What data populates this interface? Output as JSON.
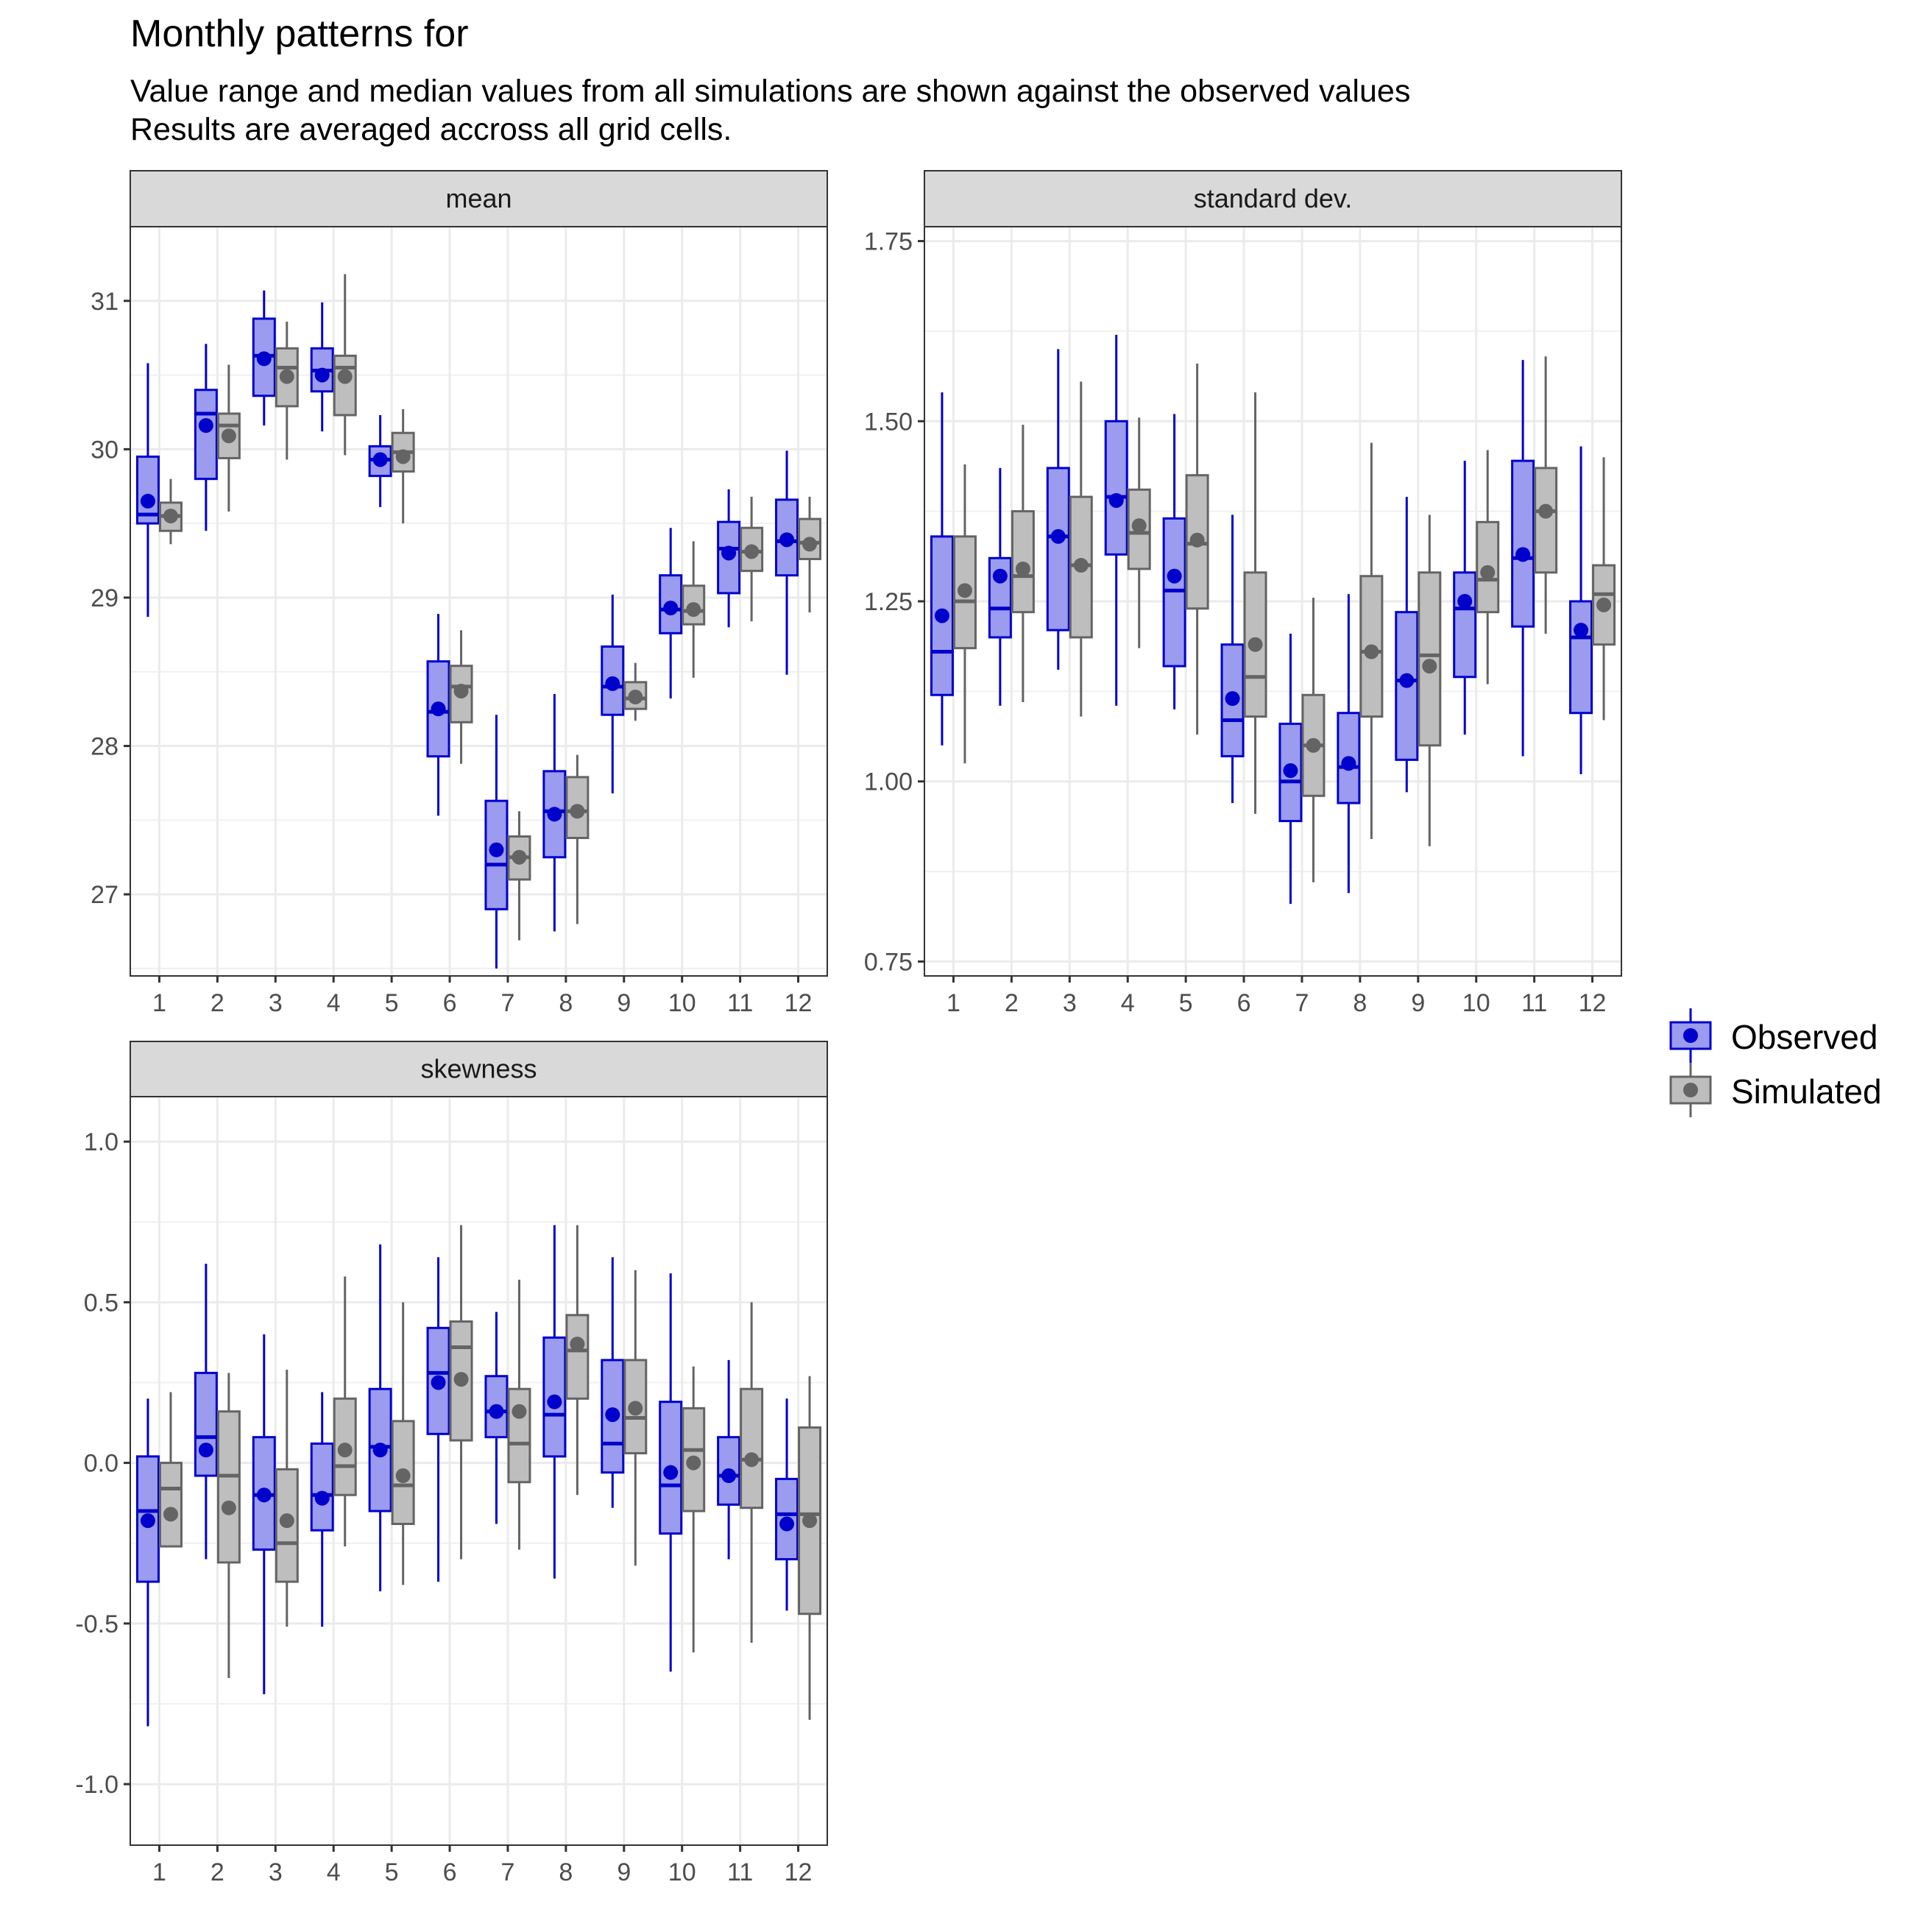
{
  "title": "Monthly patterns for",
  "subtitle_lines": [
    "Value range and median values from all simulations are shown against the observed values",
    "Results are averaged accross all grid cells."
  ],
  "legend": [
    {
      "key": "observed",
      "label": "Observed",
      "color": "#0000CD",
      "fill": "#9B9BEF"
    },
    {
      "key": "simulated",
      "label": "Simulated",
      "color": "#646464",
      "fill": "#BEBEBE"
    }
  ],
  "chart_data": [
    {
      "type": "boxplot",
      "panel": "mean",
      "categories": [
        "1",
        "2",
        "3",
        "4",
        "5",
        "6",
        "7",
        "8",
        "9",
        "10",
        "11",
        "12"
      ],
      "ylim": [
        26.45,
        31.5
      ],
      "yticks": [
        27,
        28,
        29,
        30,
        31
      ],
      "ytick_labels": [
        "27",
        "28",
        "29",
        "30",
        "31"
      ],
      "grid": true,
      "series": [
        {
          "name": "Observed",
          "min": [
            28.87,
            29.45,
            30.16,
            30.12,
            29.61,
            27.53,
            26.5,
            26.75,
            27.68,
            28.32,
            28.8,
            28.48
          ],
          "q1": [
            29.5,
            29.8,
            30.36,
            30.39,
            29.82,
            27.93,
            26.9,
            27.25,
            28.21,
            28.76,
            29.03,
            29.15
          ],
          "median": [
            29.56,
            30.24,
            30.63,
            30.53,
            29.93,
            28.23,
            27.2,
            27.56,
            28.4,
            28.92,
            29.33,
            29.38
          ],
          "q3": [
            29.95,
            30.4,
            30.88,
            30.68,
            30.02,
            28.57,
            27.63,
            27.83,
            28.67,
            29.15,
            29.51,
            29.66
          ],
          "max": [
            30.58,
            30.71,
            31.07,
            30.99,
            30.23,
            28.89,
            28.21,
            28.35,
            29.02,
            29.47,
            29.73,
            29.99
          ],
          "mean": [
            29.65,
            30.16,
            30.61,
            30.5,
            29.93,
            28.25,
            27.3,
            27.54,
            28.42,
            28.93,
            29.3,
            29.39
          ]
        },
        {
          "name": "Simulated",
          "min": [
            29.36,
            29.58,
            29.93,
            29.96,
            29.5,
            27.88,
            26.69,
            26.8,
            28.17,
            28.46,
            28.84,
            28.9
          ],
          "q1": [
            29.45,
            29.94,
            30.29,
            30.23,
            29.85,
            28.16,
            27.1,
            27.38,
            28.25,
            28.82,
            29.18,
            29.26
          ],
          "median": [
            29.55,
            30.16,
            30.55,
            30.55,
            29.98,
            28.4,
            27.25,
            27.56,
            28.32,
            28.91,
            29.31,
            29.37
          ],
          "q3": [
            29.64,
            30.24,
            30.68,
            30.63,
            30.11,
            28.54,
            27.39,
            27.79,
            28.43,
            29.08,
            29.47,
            29.53
          ],
          "max": [
            29.8,
            30.57,
            30.86,
            31.18,
            30.27,
            28.78,
            27.56,
            27.94,
            28.56,
            29.38,
            29.68,
            29.68
          ],
          "mean": [
            29.55,
            30.09,
            30.49,
            30.49,
            29.95,
            28.37,
            27.25,
            27.56,
            28.33,
            28.92,
            29.31,
            29.36
          ]
        }
      ]
    },
    {
      "type": "boxplot",
      "panel": "standard dev.",
      "categories": [
        "1",
        "2",
        "3",
        "4",
        "5",
        "6",
        "7",
        "8",
        "9",
        "10",
        "11",
        "12"
      ],
      "ylim": [
        0.73,
        1.77
      ],
      "yticks": [
        0.75,
        1.0,
        1.25,
        1.5,
        1.75
      ],
      "ytick_labels": [
        "0.75",
        "1.00",
        "1.25",
        "1.50",
        "1.75"
      ],
      "grid": true,
      "series": [
        {
          "name": "Observed",
          "min": [
            1.05,
            1.105,
            1.155,
            1.105,
            1.1,
            0.97,
            0.83,
            0.845,
            0.985,
            1.065,
            1.035,
            1.01
          ],
          "q1": [
            1.12,
            1.2,
            1.21,
            1.315,
            1.16,
            1.035,
            0.945,
            0.97,
            1.03,
            1.145,
            1.215,
            1.095
          ],
          "median": [
            1.18,
            1.24,
            1.34,
            1.395,
            1.265,
            1.085,
            1.0,
            1.02,
            1.14,
            1.24,
            1.31,
            1.2
          ],
          "q3": [
            1.34,
            1.31,
            1.435,
            1.5,
            1.365,
            1.19,
            1.08,
            1.095,
            1.235,
            1.29,
            1.445,
            1.25
          ],
          "max": [
            1.54,
            1.435,
            1.6,
            1.62,
            1.51,
            1.37,
            1.205,
            1.26,
            1.395,
            1.445,
            1.585,
            1.465
          ],
          "mean": [
            1.23,
            1.285,
            1.34,
            1.39,
            1.285,
            1.115,
            1.015,
            1.025,
            1.14,
            1.25,
            1.315,
            1.21
          ]
        },
        {
          "name": "Simulated",
          "min": [
            1.025,
            1.11,
            1.09,
            1.185,
            1.065,
            0.955,
            0.86,
            0.92,
            0.91,
            1.135,
            1.205,
            1.085
          ],
          "q1": [
            1.185,
            1.235,
            1.2,
            1.295,
            1.24,
            1.09,
            0.98,
            1.09,
            1.05,
            1.235,
            1.29,
            1.19
          ],
          "median": [
            1.25,
            1.285,
            1.3,
            1.345,
            1.33,
            1.145,
            1.05,
            1.18,
            1.175,
            1.28,
            1.375,
            1.26
          ],
          "q3": [
            1.34,
            1.375,
            1.395,
            1.405,
            1.425,
            1.29,
            1.12,
            1.285,
            1.29,
            1.36,
            1.435,
            1.3
          ],
          "max": [
            1.44,
            1.495,
            1.555,
            1.505,
            1.58,
            1.54,
            1.255,
            1.47,
            1.37,
            1.46,
            1.59,
            1.45
          ],
          "mean": [
            1.265,
            1.295,
            1.3,
            1.355,
            1.335,
            1.19,
            1.05,
            1.18,
            1.16,
            1.29,
            1.375,
            1.245
          ]
        }
      ]
    },
    {
      "type": "boxplot",
      "panel": "skewness",
      "categories": [
        "1",
        "2",
        "3",
        "4",
        "5",
        "6",
        "7",
        "8",
        "9",
        "10",
        "11",
        "12"
      ],
      "ylim": [
        -1.19,
        1.14
      ],
      "yticks": [
        -1.0,
        -0.5,
        0.0,
        0.5,
        1.0
      ],
      "ytick_labels": [
        "-1.0",
        "-0.5",
        "0.0",
        "0.5",
        "1.0"
      ],
      "grid": true,
      "series": [
        {
          "name": "Observed",
          "min": [
            -0.82,
            -0.3,
            -0.72,
            -0.51,
            -0.4,
            -0.37,
            -0.19,
            -0.36,
            -0.14,
            -0.65,
            -0.3,
            -0.46
          ],
          "q1": [
            -0.37,
            -0.04,
            -0.27,
            -0.21,
            -0.15,
            0.09,
            0.08,
            0.02,
            -0.03,
            -0.22,
            -0.13,
            -0.3
          ],
          "median": [
            -0.15,
            0.08,
            -0.1,
            -0.1,
            0.05,
            0.28,
            0.16,
            0.15,
            0.06,
            -0.07,
            -0.04,
            -0.16
          ],
          "q3": [
            0.02,
            0.28,
            0.08,
            0.06,
            0.23,
            0.42,
            0.27,
            0.39,
            0.32,
            0.19,
            0.08,
            -0.05
          ],
          "max": [
            0.2,
            0.62,
            0.4,
            0.22,
            0.68,
            0.64,
            0.47,
            0.74,
            0.64,
            0.59,
            0.32,
            0.2
          ],
          "mean": [
            -0.18,
            0.04,
            -0.1,
            -0.11,
            0.04,
            0.25,
            0.16,
            0.19,
            0.15,
            -0.03,
            -0.04,
            -0.19
          ]
        },
        {
          "name": "Simulated",
          "min": [
            -0.26,
            -0.67,
            -0.51,
            -0.26,
            -0.38,
            -0.3,
            -0.27,
            -0.1,
            -0.32,
            -0.59,
            -0.56,
            -0.8
          ],
          "q1": [
            -0.26,
            -0.31,
            -0.37,
            -0.1,
            -0.19,
            0.07,
            -0.06,
            0.2,
            0.03,
            -0.15,
            -0.14,
            -0.47
          ],
          "median": [
            -0.08,
            -0.04,
            -0.25,
            -0.01,
            -0.07,
            0.36,
            0.06,
            0.35,
            0.14,
            0.04,
            0.01,
            -0.16
          ],
          "q3": [
            0.0,
            0.16,
            -0.02,
            0.2,
            0.13,
            0.44,
            0.23,
            0.46,
            0.32,
            0.17,
            0.23,
            0.11
          ],
          "max": [
            0.22,
            0.28,
            0.29,
            0.58,
            0.5,
            0.74,
            0.57,
            0.74,
            0.6,
            0.3,
            0.5,
            0.27
          ],
          "mean": [
            -0.16,
            -0.14,
            -0.18,
            0.04,
            -0.04,
            0.26,
            0.16,
            0.37,
            0.17,
            0.0,
            0.01,
            -0.18
          ]
        }
      ]
    }
  ]
}
